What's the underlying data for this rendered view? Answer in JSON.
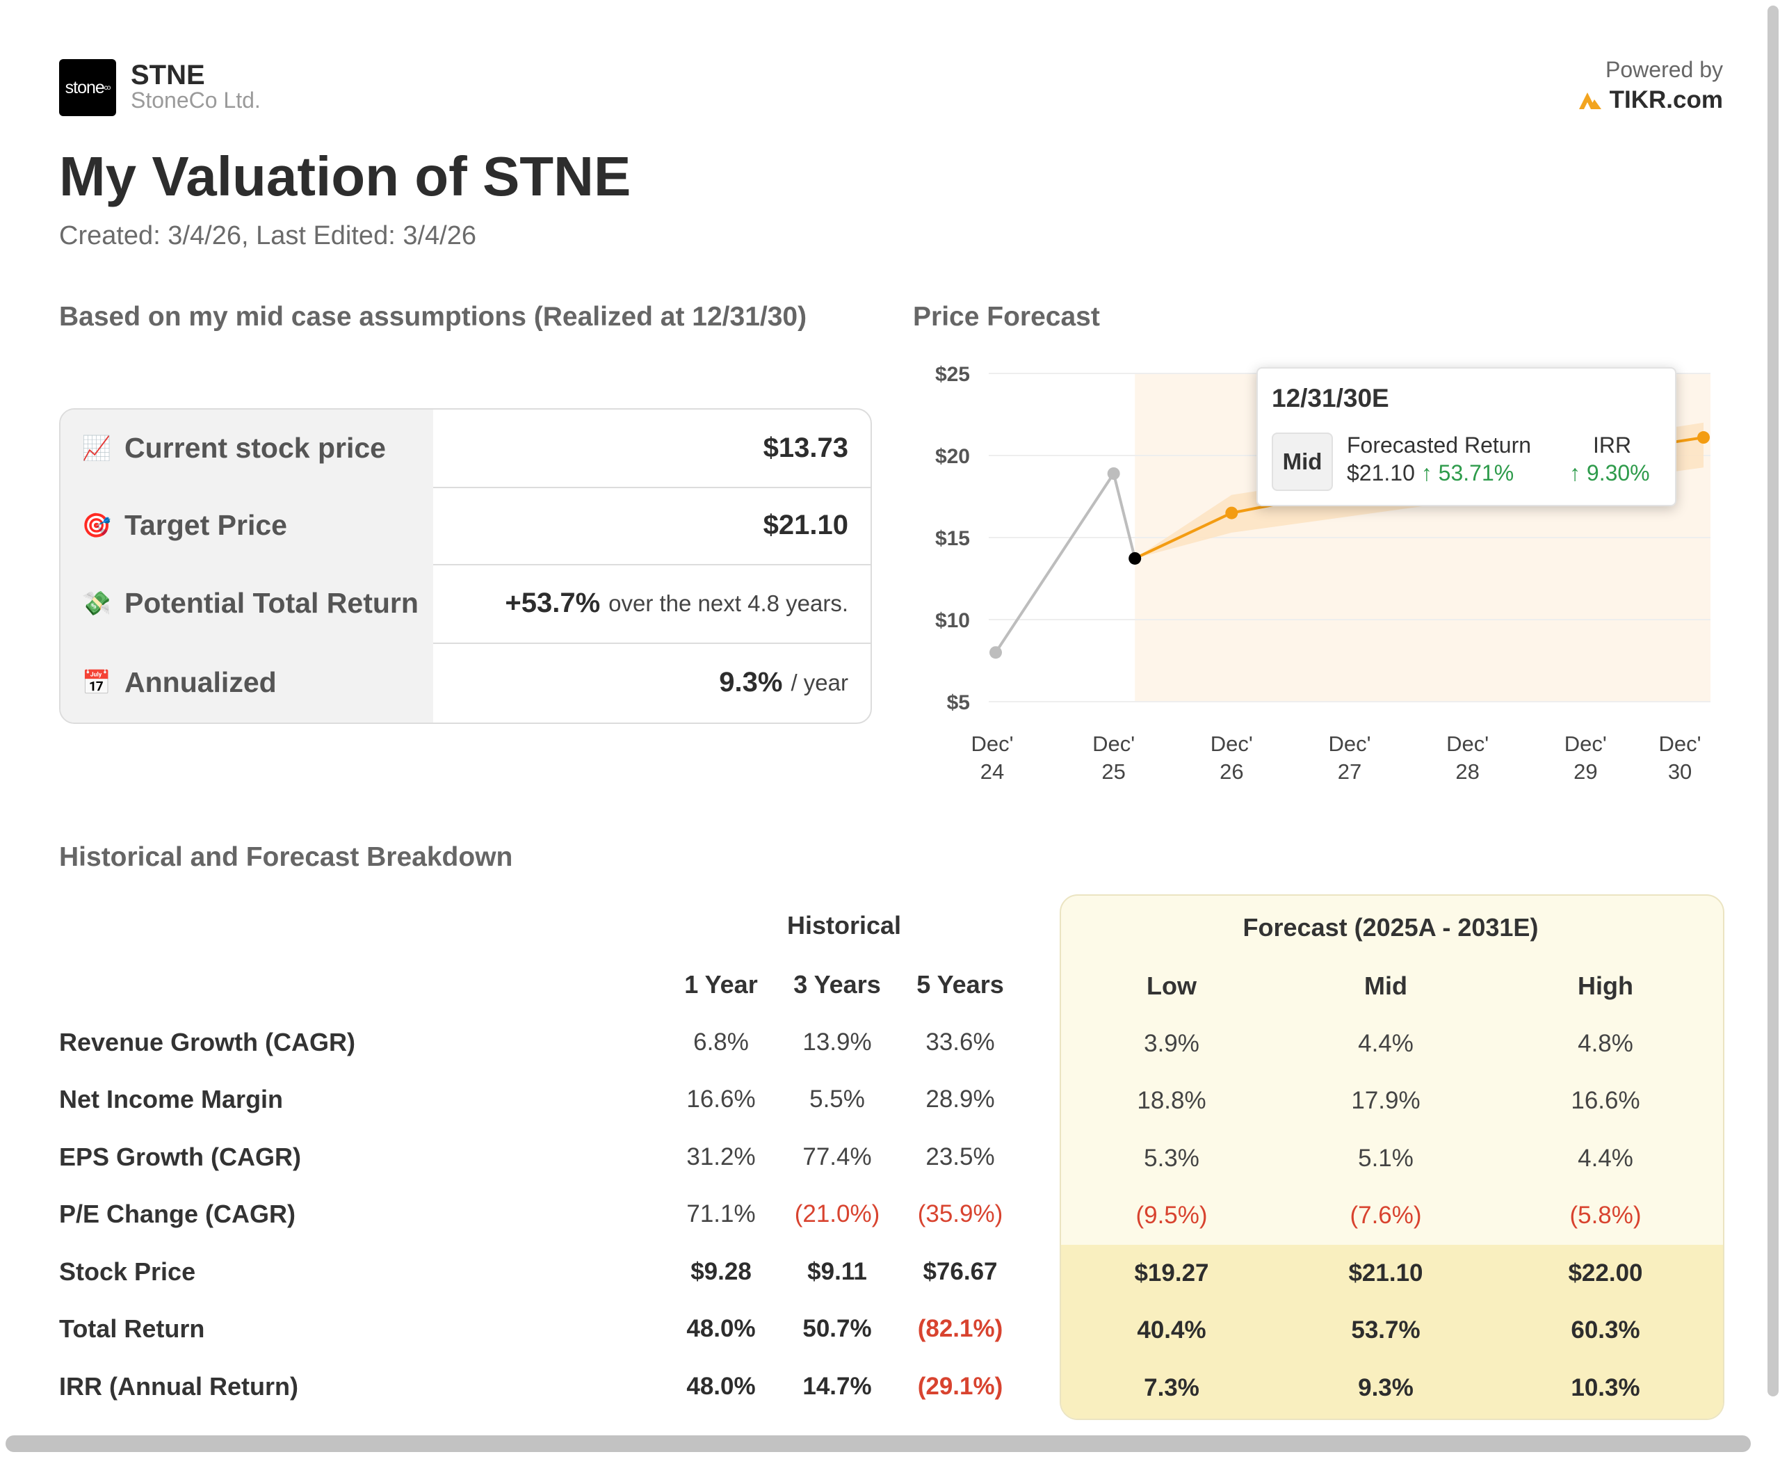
{
  "header": {
    "logo_text": "stone",
    "logo_sup": "co",
    "ticker": "STNE",
    "company": "StoneCo Ltd.",
    "powered_by": "Powered by",
    "brand": "TIKR.com",
    "title": "My Valuation of STNE",
    "dates": "Created: 3/4/26, Last Edited: 3/4/26"
  },
  "summary": {
    "heading": "Based on my mid case assumptions (Realized at 12/31/30)",
    "rows": [
      {
        "icon": "📈",
        "label": "Current stock price",
        "value": "$13.73",
        "suffix": ""
      },
      {
        "icon": "🎯",
        "label": "Target Price",
        "value": "$21.10",
        "suffix": ""
      },
      {
        "icon": "💸",
        "label": "Potential Total Return",
        "value": "+53.7%",
        "suffix": "over the next 4.8 years."
      },
      {
        "icon": "📅",
        "label": "Annualized",
        "value": "9.3%",
        "suffix": "/ year"
      }
    ]
  },
  "forecast_chart": {
    "heading": "Price Forecast",
    "tooltip": {
      "date": "12/31/30E",
      "case": "Mid",
      "col1_label": "Forecasted Return",
      "col1_price": "$21.10",
      "col1_change": "↑ 53.71%",
      "col2_label": "IRR",
      "col2_value": "↑ 9.30%"
    }
  },
  "chart_data": {
    "type": "line",
    "title": "Price Forecast",
    "y_ticks": [
      "$25",
      "$20",
      "$15",
      "$10",
      "$5"
    ],
    "ylim": [
      5,
      25
    ],
    "x_ticks": [
      {
        "line1": "Dec'",
        "line2": "24",
        "t": 0
      },
      {
        "line1": "Dec'",
        "line2": "25",
        "t": 1
      },
      {
        "line1": "Dec'",
        "line2": "26",
        "t": 2
      },
      {
        "line1": "Dec'",
        "line2": "27",
        "t": 3
      },
      {
        "line1": "Dec'",
        "line2": "28",
        "t": 4
      },
      {
        "line1": "Dec'",
        "line2": "29",
        "t": 5
      },
      {
        "line1": "Dec'",
        "line2": "30",
        "t": 5.8
      }
    ],
    "historical": [
      {
        "t": 0,
        "y": 8.0
      },
      {
        "t": 1,
        "y": 18.9
      },
      {
        "t": 1.18,
        "y": 13.73
      }
    ],
    "forecast_mid": [
      {
        "t": 1.18,
        "y": 13.73
      },
      {
        "t": 2,
        "y": 16.5
      },
      {
        "t": 2.5,
        "y": 17.2
      },
      {
        "t": 6,
        "y": 21.1
      }
    ],
    "band_low": [
      {
        "t": 1.18,
        "y": 13.73
      },
      {
        "t": 2,
        "y": 15.3
      },
      {
        "t": 6,
        "y": 19.27
      }
    ],
    "band_high": [
      {
        "t": 1.18,
        "y": 13.73
      },
      {
        "t": 2,
        "y": 17.6
      },
      {
        "t": 6,
        "y": 22.0
      }
    ],
    "forecast_region_start_t": 1.18,
    "colors": {
      "historical": "#bdbdbd",
      "forecast": "#f39c12",
      "current": "#000000",
      "band": "#fde3c2",
      "region": "#fef5ea"
    }
  },
  "breakdown": {
    "heading": "Historical and Forecast Breakdown",
    "historical_label": "Historical",
    "forecast_label": "Forecast (2025A - 2031E)",
    "hist_cols": [
      "1 Year",
      "3 Years",
      "5 Years"
    ],
    "fc_cols": [
      "Low",
      "Mid",
      "High"
    ],
    "rows": [
      {
        "label": "Revenue Growth (CAGR)",
        "hist": [
          "6.8%",
          "13.9%",
          "33.6%"
        ],
        "fc": [
          "3.9%",
          "4.4%",
          "4.8%"
        ],
        "bold": false
      },
      {
        "label": "Net Income Margin",
        "hist": [
          "16.6%",
          "5.5%",
          "28.9%"
        ],
        "fc": [
          "18.8%",
          "17.9%",
          "16.6%"
        ],
        "bold": false
      },
      {
        "label": "EPS Growth (CAGR)",
        "hist": [
          "31.2%",
          "77.4%",
          "23.5%"
        ],
        "fc": [
          "5.3%",
          "5.1%",
          "4.4%"
        ],
        "bold": false
      },
      {
        "label": "P/E Change (CAGR)",
        "hist": [
          "71.1%",
          "(21.0%)",
          "(35.9%)"
        ],
        "fc": [
          "(9.5%)",
          "(7.6%)",
          "(5.8%)"
        ],
        "bold": false
      },
      {
        "label": "Stock Price",
        "hist": [
          "$9.28",
          "$9.11",
          "$76.67"
        ],
        "fc": [
          "$19.27",
          "$21.10",
          "$22.00"
        ],
        "bold": true
      },
      {
        "label": "Total Return",
        "hist": [
          "48.0%",
          "50.7%",
          "(82.1%)"
        ],
        "fc": [
          "40.4%",
          "53.7%",
          "60.3%"
        ],
        "bold": true
      },
      {
        "label": "IRR (Annual Return)",
        "hist": [
          "48.0%",
          "14.7%",
          "(29.1%)"
        ],
        "fc": [
          "7.3%",
          "9.3%",
          "10.3%"
        ],
        "bold": true
      }
    ]
  }
}
